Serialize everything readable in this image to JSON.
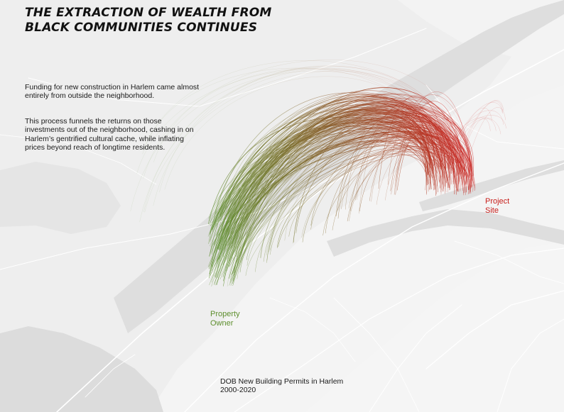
{
  "title": {
    "line1": "THE EXTRACTION OF WEALTH FROM",
    "line2": "BLACK COMMUNITIES CONTINUES"
  },
  "description": {
    "paragraph1": "Funding for new construction in Harlem came almost entirely from outside the neighborhood.",
    "paragraph2": "This process funnels the returns on those investments out of the neighborhood, cashing in on Harlem’s gentrified cultural cache, while inflating prices beyond reach of longtime residents."
  },
  "labels": {
    "origin": "Property Owner",
    "destination": "Project Site"
  },
  "source": {
    "line1": "DOB New Building Permits in Harlem",
    "line2": "2000-2020"
  },
  "colors": {
    "background": "#eeeeee",
    "land": "#f3f3f3",
    "water": "#dedede",
    "roads": "#ffffff",
    "origin": "#5e8f2e",
    "destination": "#c8201c"
  },
  "flows": {
    "direction": "arcs run from the property owner end (green) to the project site end (red)"
  }
}
